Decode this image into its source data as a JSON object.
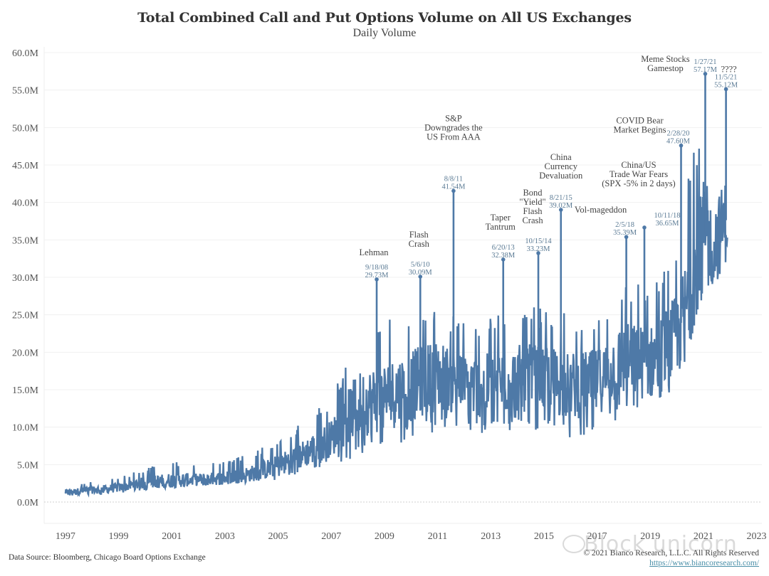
{
  "chart_data": {
    "type": "line",
    "title": "Total Combined Call and Put Options Volume on All US Exchanges",
    "subtitle": "Daily Volume",
    "xlabel": "",
    "ylabel": "",
    "series_color": "#4e79a7",
    "ylim": [
      0,
      60
    ],
    "xlim": [
      1996.2,
      2023.2
    ],
    "y_ticks": [
      0,
      5,
      10,
      15,
      20,
      25,
      30,
      35,
      40,
      45,
      50,
      55,
      60
    ],
    "y_tick_labels": [
      "0.0M",
      "5.0M",
      "10.0M",
      "15.0M",
      "20.0M",
      "25.0M",
      "30.0M",
      "35.0M",
      "40.0M",
      "45.0M",
      "50.0M",
      "55.0M",
      "60.0M"
    ],
    "x_ticks": [
      1997,
      1999,
      2001,
      2003,
      2005,
      2007,
      2009,
      2011,
      2013,
      2015,
      2017,
      2019,
      2021,
      2023
    ],
    "x_tick_labels": [
      "1997",
      "1999",
      "2001",
      "2003",
      "2005",
      "2007",
      "2009",
      "2011",
      "2013",
      "2015",
      "2017",
      "2019",
      "2021",
      "2023"
    ],
    "grid": true,
    "series": [
      {
        "name": "Daily Volume (M)",
        "trend": {
          "x": [
            1997.0,
            1998.0,
            1999.0,
            2000.0,
            2001.0,
            2002.0,
            2003.0,
            2004.0,
            2005.0,
            2006.0,
            2007.0,
            2008.0,
            2009.0,
            2010.0,
            2011.0,
            2012.0,
            2013.0,
            2014.0,
            2015.0,
            2016.0,
            2017.0,
            2018.0,
            2019.0,
            2020.0,
            2020.5,
            2021.0,
            2021.5,
            2021.9
          ],
          "base": [
            1.3,
            1.6,
            1.9,
            2.6,
            2.9,
            3.0,
            3.2,
            3.8,
            4.8,
            6.5,
            8.5,
            13.0,
            14.0,
            15.5,
            17.0,
            15.5,
            15.5,
            16.5,
            16.5,
            15.5,
            16.0,
            19.0,
            18.5,
            22.0,
            28.0,
            36.0,
            35.0,
            38.0
          ],
          "low": [
            0.8,
            1.0,
            1.2,
            1.6,
            1.8,
            2.0,
            2.2,
            2.5,
            3.0,
            4.0,
            5.0,
            6.0,
            7.0,
            8.5,
            9.5,
            9.0,
            9.0,
            9.5,
            9.0,
            8.5,
            9.0,
            11.5,
            11.0,
            13.0,
            19.5,
            27.0,
            27.5,
            29.5
          ],
          "high": [
            2.2,
            2.8,
            3.4,
            4.5,
            5.5,
            5.0,
            5.5,
            6.5,
            8.5,
            11.0,
            14.0,
            22.0,
            24.0,
            26.0,
            27.0,
            24.0,
            25.0,
            26.0,
            26.0,
            25.0,
            25.0,
            30.0,
            29.0,
            34.0,
            45.0,
            52.0,
            48.0,
            50.0
          ]
        }
      }
    ],
    "annotations": [
      {
        "label": [
          "Lehman"
        ],
        "date": "9/18/08",
        "value_label": "29.73M",
        "x": 2008.71,
        "y": 29.73
      },
      {
        "label": [
          "Flash",
          "Crash"
        ],
        "date": "5/6/10",
        "value_label": "30.09M",
        "x": 2010.35,
        "y": 30.09
      },
      {
        "label": [
          "S&P",
          "Downgrades the",
          "US From AAA"
        ],
        "date": "8/8/11",
        "value_label": "41.54M",
        "x": 2011.6,
        "y": 41.54
      },
      {
        "label": [
          "Taper",
          "Tantrum"
        ],
        "date": "6/20/13",
        "value_label": "32.38M",
        "x": 2013.47,
        "y": 32.38
      },
      {
        "label": [
          "Bond",
          "\"Yield\"",
          "Flash",
          "Crash"
        ],
        "date": "10/15/14",
        "value_label": "33.23M",
        "x": 2014.79,
        "y": 33.23
      },
      {
        "label": [
          "China",
          "Currency",
          "Devaluation"
        ],
        "date": "8/21/15",
        "value_label": "39.02M",
        "x": 2015.64,
        "y": 39.02
      },
      {
        "label": [
          "Vol-mageddon"
        ],
        "date": "2/5/18",
        "value_label": "35.39M",
        "x": 2018.1,
        "y": 35.39
      },
      {
        "label": [
          "China/US",
          "Trade War Fears",
          "(SPX -5% in 2 days)"
        ],
        "date": "10/11/18",
        "value_label": "36.65M",
        "x": 2018.78,
        "y": 36.65
      },
      {
        "label": [
          "COVID Bear",
          "Market Begins"
        ],
        "date": "2/28/20",
        "value_label": "47.60M",
        "x": 2020.16,
        "y": 47.6
      },
      {
        "label": [
          "Meme Stocks",
          "Gamestop"
        ],
        "date": "1/27/21",
        "value_label": "57.17M",
        "x": 2021.07,
        "y": 57.17
      },
      {
        "label": [
          "????"
        ],
        "date": "11/5/21",
        "value_label": "55.12M",
        "x": 2021.85,
        "y": 55.12
      }
    ]
  },
  "footer": {
    "source": "Data Source: Bloomberg, Chicago Board Options Exchange",
    "copyright": "© 2021 Bianco Research, L.L.C. All Rights Reserved",
    "url": "https://www.biancoresearch.com/",
    "watermark": "Block unicorn"
  }
}
